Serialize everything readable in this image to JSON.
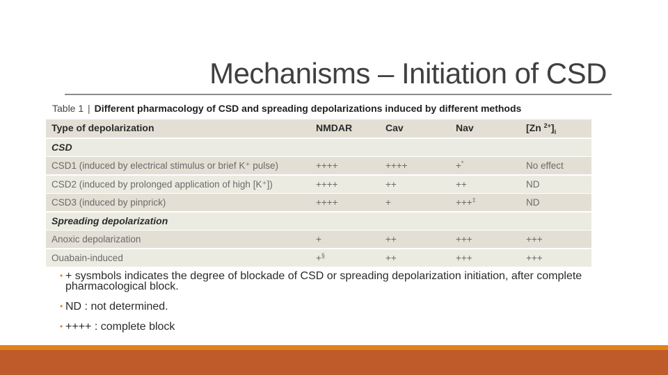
{
  "slide": {
    "title": "Mechanisms – Initiation of CSD"
  },
  "table": {
    "caption_label": "Table 1",
    "caption_sep": "|",
    "caption_text": "Different pharmacology of CSD and spreading depolarizations induced by different methods",
    "headers": {
      "type": "Type of depolarization",
      "nmdar": "NMDAR",
      "cav": "Cav",
      "nav": "Nav",
      "zn_prefix": "[Zn",
      "zn_sup": "2+",
      "zn_suffix": "]",
      "zn_sub": "i"
    },
    "sections": [
      {
        "label": "CSD",
        "rows": [
          {
            "type": "CSD1 (induced by electrical stimulus or brief K⁺ pulse)",
            "nmdar": "++++",
            "nmdar_mark": "",
            "cav": "++++",
            "nav": "+",
            "nav_mark": "*",
            "zn": "No effect"
          },
          {
            "type": "CSD2 (induced by prolonged application of high [K⁺])",
            "nmdar": "++++",
            "nmdar_mark": "",
            "cav": "++",
            "nav": "++",
            "nav_mark": "",
            "zn": "ND"
          },
          {
            "type": "CSD3 (induced by pinprick)",
            "nmdar": "++++",
            "nmdar_mark": "",
            "cav": "+",
            "nav": "+++",
            "nav_mark": "‡",
            "zn": "ND"
          }
        ]
      },
      {
        "label": "Spreading depolarization",
        "rows": [
          {
            "type": "Anoxic depolarization",
            "nmdar": "+",
            "nmdar_mark": "",
            "cav": "++",
            "nav": "+++",
            "nav_mark": "",
            "zn": "+++"
          },
          {
            "type": "Ouabain-induced",
            "nmdar": "+",
            "nmdar_mark": "§",
            "cav": "++",
            "nav": "+++",
            "nav_mark": "",
            "zn": "+++"
          }
        ]
      }
    ]
  },
  "notes": {
    "bullet_glyph": "•",
    "items": [
      {
        "text": "+ sysmbols indicates the degree of blockade of CSD or spreading depolarization initiation, after complete pharmacological block."
      },
      {
        "text": "ND : not determined."
      },
      {
        "text": "++++ : complete block"
      }
    ]
  },
  "theme": {
    "accent_orange": "#e28217",
    "accent_rust": "#bf5a2b",
    "table_row_dark": "#e4dfd5",
    "table_row_light": "#ecebe1"
  }
}
